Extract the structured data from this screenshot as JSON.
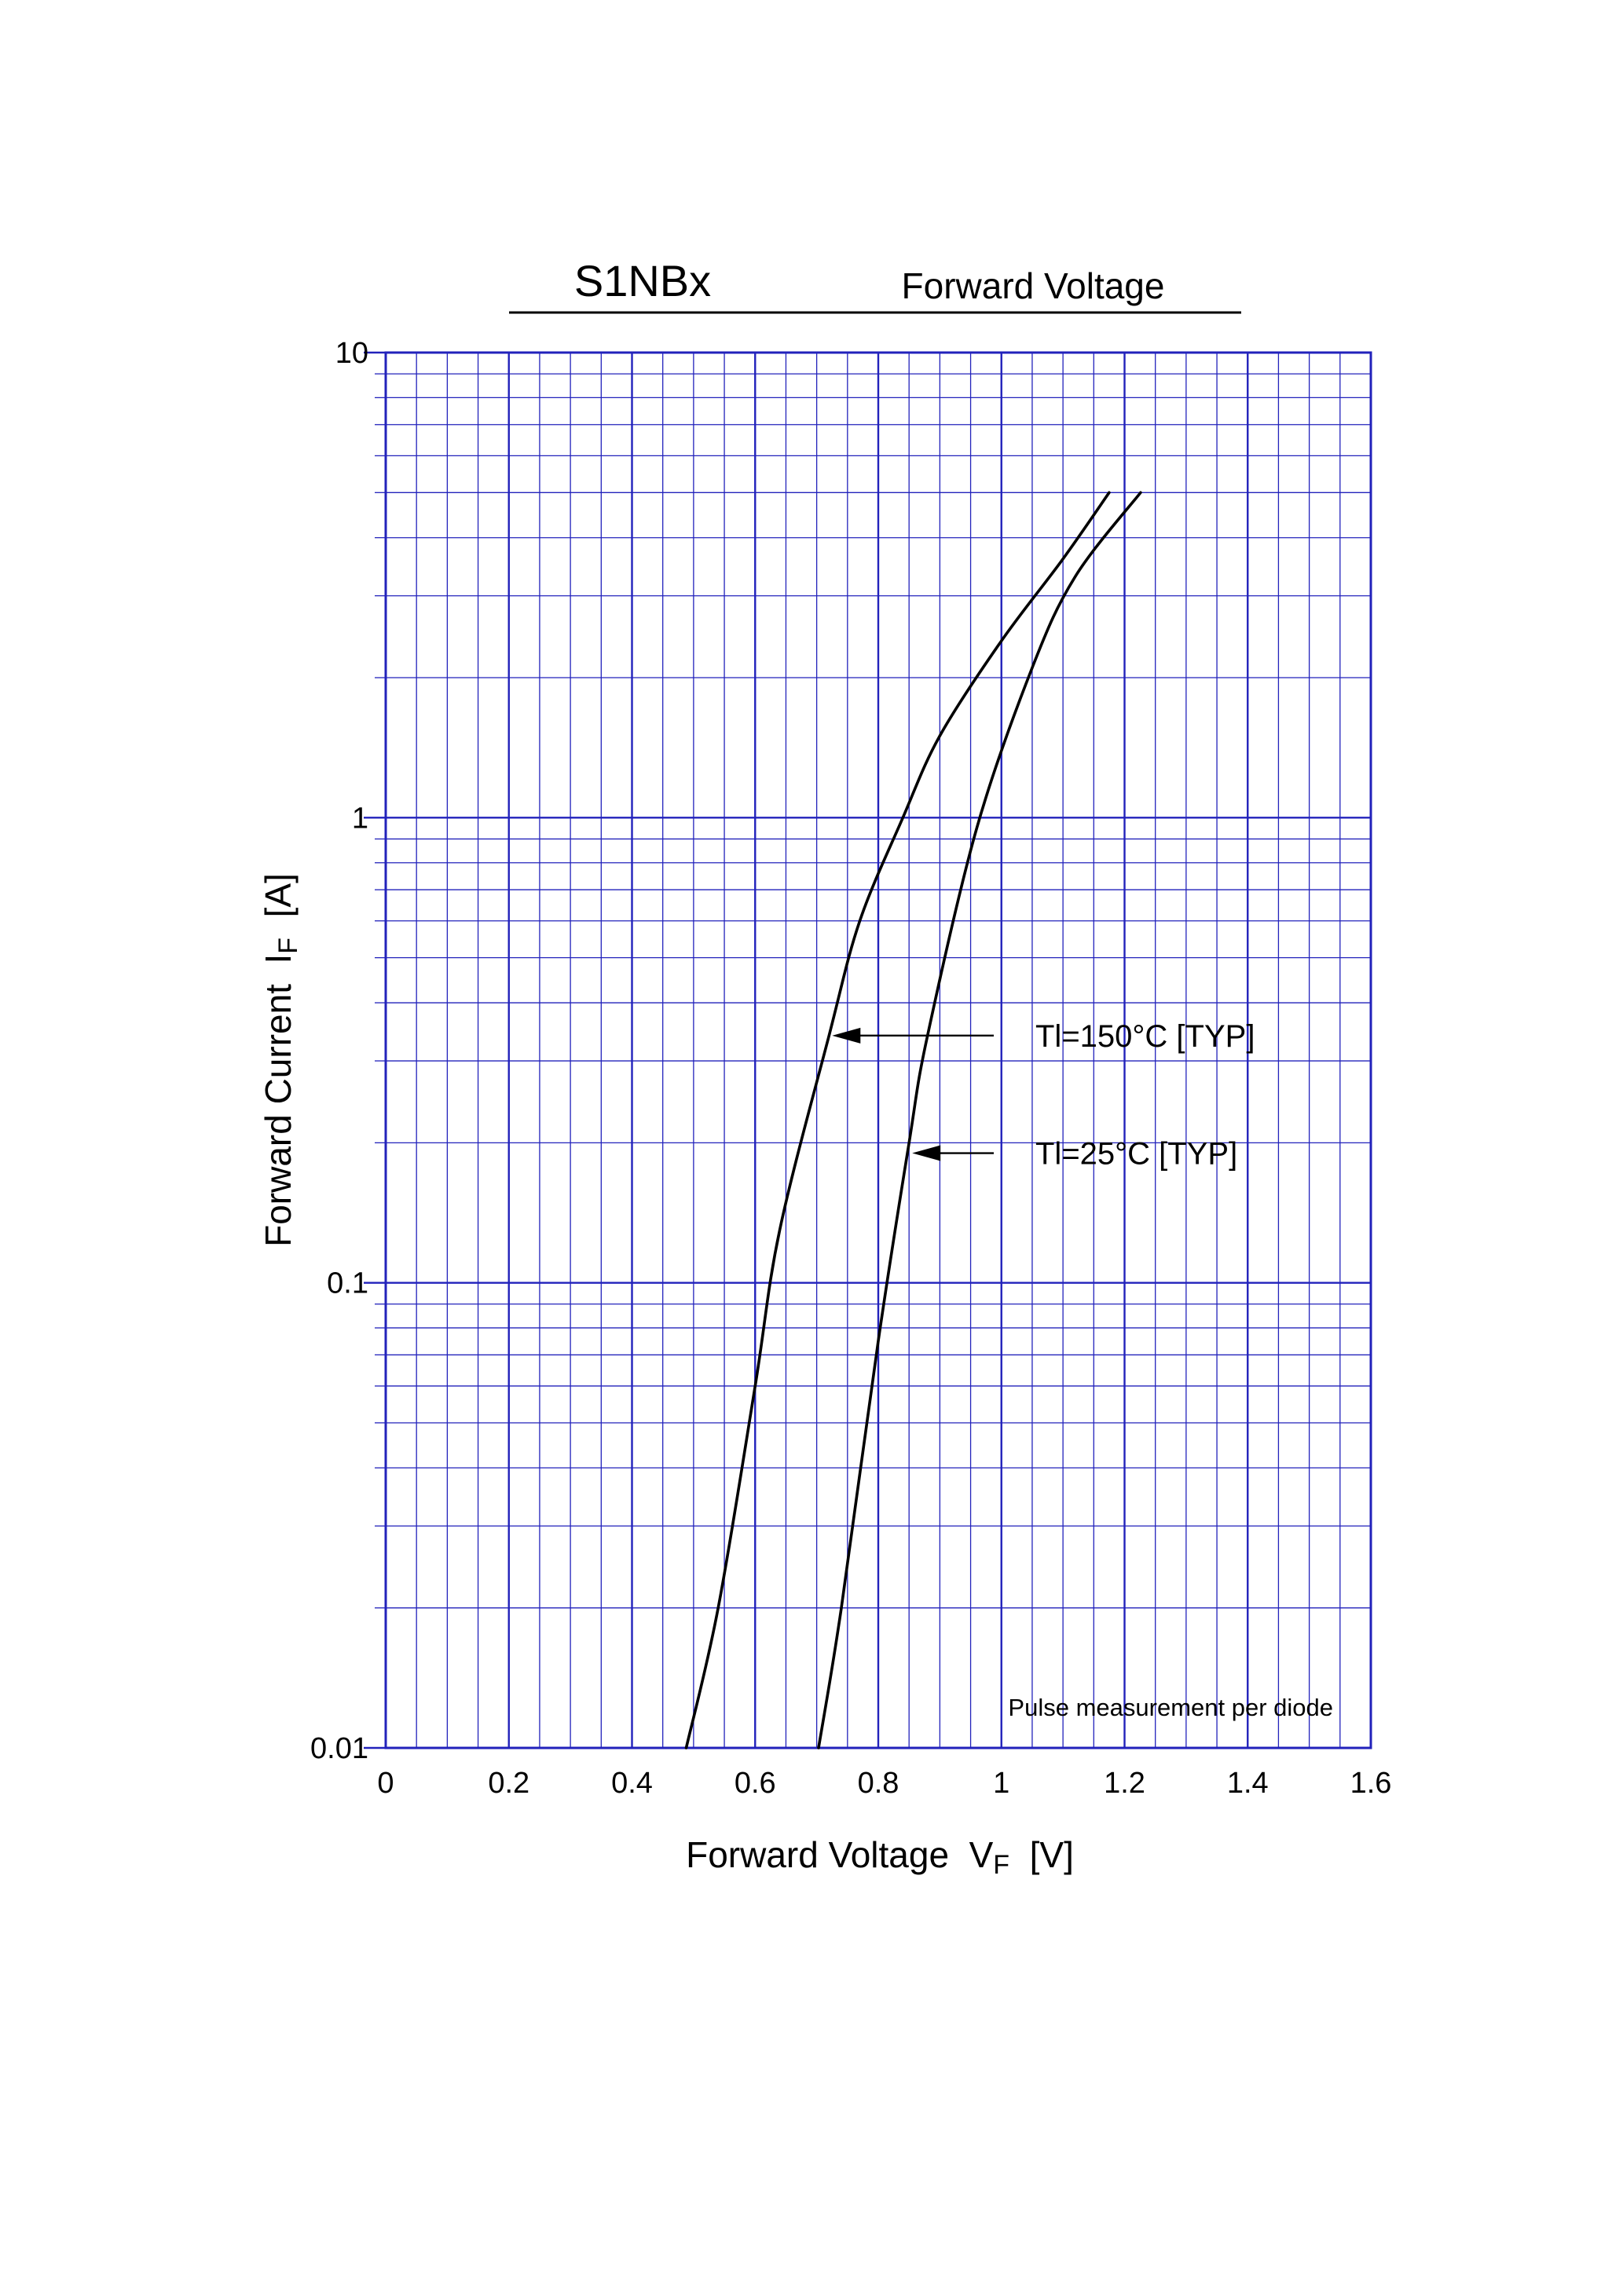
{
  "chart_data": {
    "type": "line",
    "title": "S1NBx",
    "subtitle": "Forward Voltage",
    "xlabel": {
      "main": "Forward Voltage  V",
      "sub": "F",
      "unit": "  [V]"
    },
    "ylabel": {
      "main": "Forward Current  I",
      "sub": "F",
      "unit": "  [A]"
    },
    "xlim": [
      0,
      1.6
    ],
    "ylim": [
      0.01,
      10
    ],
    "yscale": "log",
    "grid": true,
    "x_ticks": [
      "0",
      "0.2",
      "0.4",
      "0.6",
      "0.8",
      "1",
      "1.2",
      "1.4",
      "1.6"
    ],
    "y_ticks": [
      {
        "value": 10,
        "label": "10"
      },
      {
        "value": 1,
        "label": "1"
      },
      {
        "value": 0.1,
        "label": "0.1"
      },
      {
        "value": 0.01,
        "label": "0.01"
      }
    ],
    "series": [
      {
        "name": "Tl=150°C [TYP]",
        "points": [
          [
            0.488,
            0.01
          ],
          [
            0.54,
            0.02
          ],
          [
            0.6,
            0.06
          ],
          [
            0.64,
            0.13
          ],
          [
            0.72,
            0.34
          ],
          [
            0.77,
            0.6
          ],
          [
            0.84,
            1.0
          ],
          [
            0.9,
            1.5
          ],
          [
            1.0,
            2.4
          ],
          [
            1.1,
            3.6
          ],
          [
            1.175,
            5.0
          ]
        ]
      },
      {
        "name": "Tl=25°C [TYP]",
        "points": [
          [
            0.703,
            0.01
          ],
          [
            0.74,
            0.02
          ],
          [
            0.8,
            0.075
          ],
          [
            0.85,
            0.2
          ],
          [
            0.88,
            0.34
          ],
          [
            0.96,
            0.95
          ],
          [
            1.05,
            2.1
          ],
          [
            1.12,
            3.3
          ],
          [
            1.226,
            5.0
          ]
        ]
      }
    ],
    "annotations": [
      {
        "text": "Tl=150°C [TYP]",
        "x": 0.72,
        "y": 0.34,
        "series": 0
      },
      {
        "text": "Tl=25°C [TYP]",
        "x": 0.85,
        "y": 0.19,
        "series": 1
      },
      {
        "text": "Pulse  measurement  per  diode"
      }
    ]
  }
}
